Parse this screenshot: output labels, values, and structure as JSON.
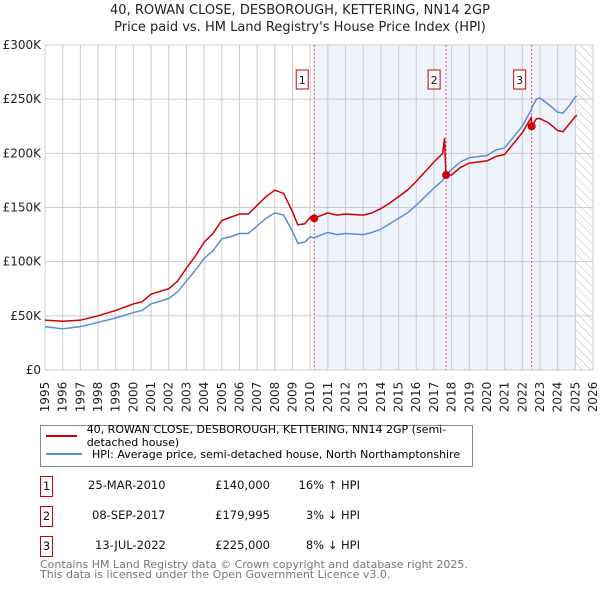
{
  "title": "40, ROWAN CLOSE, DESBOROUGH, KETTERING, NN14 2GP",
  "subtitle": "Price paid vs. HM Land Registry's House Price Index (HPI)",
  "chart_data": {
    "type": "line",
    "ylim": [
      0,
      300000
    ],
    "xlim": [
      1995,
      2026
    ],
    "yticks": [
      {
        "v": 0,
        "label": "£0"
      },
      {
        "v": 50000,
        "label": "£50K"
      },
      {
        "v": 100000,
        "label": "£100K"
      },
      {
        "v": 150000,
        "label": "£150K"
      },
      {
        "v": 200000,
        "label": "£200K"
      },
      {
        "v": 250000,
        "label": "£250K"
      },
      {
        "v": 300000,
        "label": "£300K"
      }
    ],
    "xticks": [
      "1995",
      "1996",
      "1997",
      "1998",
      "1999",
      "2000",
      "2001",
      "2002",
      "2003",
      "2004",
      "2005",
      "2006",
      "2007",
      "2008",
      "2009",
      "2010",
      "2011",
      "2012",
      "2013",
      "2014",
      "2015",
      "2016",
      "2017",
      "2018",
      "2019",
      "2020",
      "2021",
      "2022",
      "2023",
      "2024",
      "2025",
      "2026"
    ],
    "x": [
      1995,
      1996,
      1997,
      1998,
      1999,
      2000,
      2000.5,
      2001,
      2002,
      2002.5,
      2003,
      2003.5,
      2004,
      2004.5,
      2005,
      2005.5,
      2006,
      2006.5,
      2007,
      2007.5,
      2008,
      2008.5,
      2009,
      2009.3,
      2009.7,
      2010,
      2010.2,
      2011,
      2011.5,
      2012,
      2013,
      2013.5,
      2014,
      2014.5,
      2015,
      2015.5,
      2016,
      2016.5,
      2017,
      2017.5,
      2017.6,
      2017.68,
      2018,
      2018.5,
      2019,
      2019.5,
      2020,
      2020.5,
      2021,
      2021.5,
      2022,
      2022.5,
      2022.53,
      2022.8,
      2023,
      2023.5,
      2024,
      2024.3,
      2024.7,
      2025,
      2025.1
    ],
    "series": [
      {
        "name": "40, ROWAN CLOSE, DESBOROUGH, KETTERING, NN14 2GP (semi-detached house)",
        "color": "#cc0000",
        "values": [
          46000,
          45000,
          46000,
          50000,
          55000,
          61000,
          63000,
          70000,
          75000,
          82000,
          94000,
          105000,
          118000,
          126000,
          138000,
          141000,
          144000,
          144000,
          152000,
          160000,
          166000,
          163000,
          146000,
          134000,
          135000,
          141000,
          140000,
          145000,
          143000,
          144000,
          143000,
          145000,
          149000,
          154000,
          160000,
          166000,
          174000,
          183000,
          192000,
          200000,
          214000,
          180000,
          180000,
          187000,
          191000,
          192000,
          193000,
          197000,
          199000,
          209000,
          219000,
          233000,
          225000,
          232000,
          232000,
          228000,
          221000,
          220000,
          228000,
          234000,
          235000
        ]
      },
      {
        "name": "HPI: Average price, semi-detached house, North Northamptonshire",
        "color": "#5b8ed6",
        "values": [
          40000,
          38000,
          40000,
          44000,
          48000,
          53000,
          55000,
          61000,
          66000,
          72000,
          82000,
          92000,
          103000,
          110000,
          121000,
          123000,
          126000,
          126000,
          133000,
          140000,
          145000,
          143000,
          128000,
          117000,
          118000,
          123000,
          122000,
          127000,
          125000,
          126000,
          125000,
          127000,
          130000,
          135000,
          140000,
          145000,
          152000,
          160000,
          168000,
          175000,
          178000,
          180000,
          185000,
          192000,
          196000,
          197000,
          198000,
          203000,
          205000,
          215000,
          225000,
          240000,
          242000,
          250000,
          251000,
          245000,
          238000,
          237000,
          245000,
          252000,
          253000
        ]
      }
    ],
    "sales": [
      {
        "n": "1",
        "x": 2010.23,
        "price": 140000,
        "date": "25-MAR-2010",
        "price_label": "£140,000",
        "hpi": "16% ↑ HPI"
      },
      {
        "n": "2",
        "x": 2017.69,
        "price": 179995,
        "date": "08-SEP-2017",
        "price_label": "£179,995",
        "hpi": "3% ↓ HPI"
      },
      {
        "n": "3",
        "x": 2022.53,
        "price": 225000,
        "date": "13-JUL-2022",
        "price_label": "£225,000",
        "hpi": "8% ↓ HPI"
      }
    ],
    "shaded_range": [
      2010.23,
      2025.0
    ],
    "forecast_hatch_from": 2025.0,
    "grid": true
  },
  "footer": [
    "Contains HM Land Registry data © Crown copyright and database right 2025.",
    "This data is licensed under the Open Government Licence v3.0."
  ]
}
